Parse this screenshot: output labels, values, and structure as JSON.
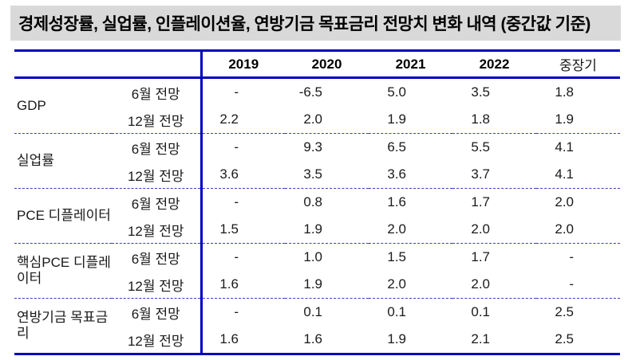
{
  "title": "경제성장률, 실업률, 인플레이션율, 연방기금 목표금리 전망치 변화 내역 (중간값 기준)",
  "colors": {
    "line_blue": "#0000bf",
    "dashed_blue": "#3a3acd",
    "title_background": "#d9d9d9",
    "text": "#1a1a1a"
  },
  "table": {
    "columns": [
      "2019",
      "2020",
      "2021",
      "2022",
      "중장기"
    ],
    "groups": [
      {
        "label": "GDP",
        "rows": [
          {
            "label": "6월 전망",
            "values": [
              "-",
              "-6.5",
              "5.0",
              "3.5",
              "1.8"
            ]
          },
          {
            "label": "12월 전망",
            "values": [
              "2.2",
              "2.0",
              "1.9",
              "1.8",
              "1.9"
            ]
          }
        ]
      },
      {
        "label": "실업률",
        "rows": [
          {
            "label": "6월 전망",
            "values": [
              "-",
              "9.3",
              "6.5",
              "5.5",
              "4.1"
            ]
          },
          {
            "label": "12월 전망",
            "values": [
              "3.6",
              "3.5",
              "3.6",
              "3.7",
              "4.1"
            ]
          }
        ]
      },
      {
        "label": "PCE 디플레이터",
        "rows": [
          {
            "label": "6월 전망",
            "values": [
              "-",
              "0.8",
              "1.6",
              "1.7",
              "2.0"
            ]
          },
          {
            "label": "12월 전망",
            "values": [
              "1.5",
              "1.9",
              "2.0",
              "2.0",
              "2.0"
            ]
          }
        ]
      },
      {
        "label": "핵심PCE 디플레이터",
        "rows": [
          {
            "label": "6월 전망",
            "values": [
              "-",
              "1.0",
              "1.5",
              "1.7",
              "-"
            ]
          },
          {
            "label": "12월 전망",
            "values": [
              "1.6",
              "1.9",
              "2.0",
              "2.0",
              "-"
            ]
          }
        ]
      },
      {
        "label": "연방기금 목표금리",
        "rows": [
          {
            "label": "6월 전망",
            "values": [
              "-",
              "0.1",
              "0.1",
              "0.1",
              "2.5"
            ]
          },
          {
            "label": "12월 전망",
            "values": [
              "1.6",
              "1.6",
              "1.9",
              "2.1",
              "2.5"
            ]
          }
        ]
      }
    ]
  }
}
